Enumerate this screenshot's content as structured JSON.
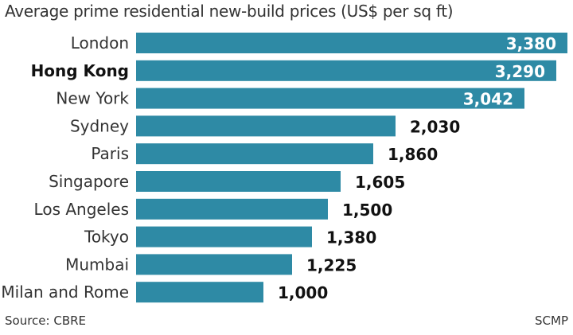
{
  "title": "Average prime residential new-build prices (US$ per sq ft)",
  "source": "Source: CBRE",
  "credit": "SCMP",
  "colors": {
    "bar": "#2E8AA5",
    "inside_label": "#ffffff",
    "outside_label": "#111111"
  },
  "chart_data": {
    "type": "bar",
    "orientation": "horizontal",
    "title": "Average prime residential new-build prices (US$ per sq ft)",
    "categories": [
      "London",
      "Hong Kong",
      "New York",
      "Sydney",
      "Paris",
      "Singapore",
      "Los Angeles",
      "Tokyo",
      "Mumbai",
      "Milan and Rome"
    ],
    "values": [
      3380,
      3290,
      3042,
      2030,
      1860,
      1605,
      1500,
      1380,
      1225,
      1000
    ],
    "value_labels": [
      "3,380",
      "3,290",
      "3,042",
      "2,030",
      "1,860",
      "1,605",
      "1,500",
      "1,380",
      "1,225",
      "1,000"
    ],
    "highlight": "Hong Kong",
    "xlim": [
      0,
      3380
    ],
    "grid": false,
    "legend": "none"
  }
}
